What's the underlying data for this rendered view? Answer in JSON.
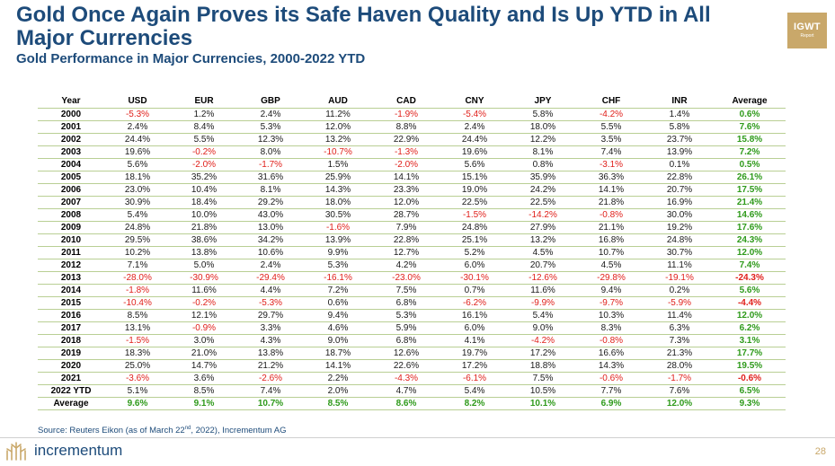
{
  "header": {
    "title": "Gold Once Again Proves its Safe Haven Quality and Is Up YTD in All Major Currencies",
    "subtitle": "Gold Performance in Major Currencies, 2000-2022 YTD",
    "badge_main": "IGWT",
    "badge_sub": "Report"
  },
  "table": {
    "columns": [
      "Year",
      "USD",
      "EUR",
      "GBP",
      "AUD",
      "CAD",
      "CNY",
      "JPY",
      "CHF",
      "INR",
      "Average"
    ],
    "rows": [
      [
        "2000",
        "-5.3%",
        "1.2%",
        "2.4%",
        "11.2%",
        "-1.9%",
        "-5.4%",
        "5.8%",
        "-4.2%",
        "1.4%",
        "0.6%"
      ],
      [
        "2001",
        "2.4%",
        "8.4%",
        "5.3%",
        "12.0%",
        "8.8%",
        "2.4%",
        "18.0%",
        "5.5%",
        "5.8%",
        "7.6%"
      ],
      [
        "2002",
        "24.4%",
        "5.5%",
        "12.3%",
        "13.2%",
        "22.9%",
        "24.4%",
        "12.2%",
        "3.5%",
        "23.7%",
        "15.8%"
      ],
      [
        "2003",
        "19.6%",
        "-0.2%",
        "8.0%",
        "-10.7%",
        "-1.3%",
        "19.6%",
        "8.1%",
        "7.4%",
        "13.9%",
        "7.2%"
      ],
      [
        "2004",
        "5.6%",
        "-2.0%",
        "-1.7%",
        "1.5%",
        "-2.0%",
        "5.6%",
        "0.8%",
        "-3.1%",
        "0.1%",
        "0.5%"
      ],
      [
        "2005",
        "18.1%",
        "35.2%",
        "31.6%",
        "25.9%",
        "14.1%",
        "15.1%",
        "35.9%",
        "36.3%",
        "22.8%",
        "26.1%"
      ],
      [
        "2006",
        "23.0%",
        "10.4%",
        "8.1%",
        "14.3%",
        "23.3%",
        "19.0%",
        "24.2%",
        "14.1%",
        "20.7%",
        "17.5%"
      ],
      [
        "2007",
        "30.9%",
        "18.4%",
        "29.2%",
        "18.0%",
        "12.0%",
        "22.5%",
        "22.5%",
        "21.8%",
        "16.9%",
        "21.4%"
      ],
      [
        "2008",
        "5.4%",
        "10.0%",
        "43.0%",
        "30.5%",
        "28.7%",
        "-1.5%",
        "-14.2%",
        "-0.8%",
        "30.0%",
        "14.6%"
      ],
      [
        "2009",
        "24.8%",
        "21.8%",
        "13.0%",
        "-1.6%",
        "7.9%",
        "24.8%",
        "27.9%",
        "21.1%",
        "19.2%",
        "17.6%"
      ],
      [
        "2010",
        "29.5%",
        "38.6%",
        "34.2%",
        "13.9%",
        "22.8%",
        "25.1%",
        "13.2%",
        "16.8%",
        "24.8%",
        "24.3%"
      ],
      [
        "2011",
        "10.2%",
        "13.8%",
        "10.6%",
        "9.9%",
        "12.7%",
        "5.2%",
        "4.5%",
        "10.7%",
        "30.7%",
        "12.0%"
      ],
      [
        "2012",
        "7.1%",
        "5.0%",
        "2.4%",
        "5.3%",
        "4.2%",
        "6.0%",
        "20.7%",
        "4.5%",
        "11.1%",
        "7.4%"
      ],
      [
        "2013",
        "-28.0%",
        "-30.9%",
        "-29.4%",
        "-16.1%",
        "-23.0%",
        "-30.1%",
        "-12.6%",
        "-29.8%",
        "-19.1%",
        "-24.3%"
      ],
      [
        "2014",
        "-1.8%",
        "11.6%",
        "4.4%",
        "7.2%",
        "7.5%",
        "0.7%",
        "11.6%",
        "9.4%",
        "0.2%",
        "5.6%"
      ],
      [
        "2015",
        "-10.4%",
        "-0.2%",
        "-5.3%",
        "0.6%",
        "6.8%",
        "-6.2%",
        "-9.9%",
        "-9.7%",
        "-5.9%",
        "-4.4%"
      ],
      [
        "2016",
        "8.5%",
        "12.1%",
        "29.7%",
        "9.4%",
        "5.3%",
        "16.1%",
        "5.4%",
        "10.3%",
        "11.4%",
        "12.0%"
      ],
      [
        "2017",
        "13.1%",
        "-0.9%",
        "3.3%",
        "4.6%",
        "5.9%",
        "6.0%",
        "9.0%",
        "8.3%",
        "6.3%",
        "6.2%"
      ],
      [
        "2018",
        "-1.5%",
        "3.0%",
        "4.3%",
        "9.0%",
        "6.8%",
        "4.1%",
        "-4.2%",
        "-0.8%",
        "7.3%",
        "3.1%"
      ],
      [
        "2019",
        "18.3%",
        "21.0%",
        "13.8%",
        "18.7%",
        "12.6%",
        "19.7%",
        "17.2%",
        "16.6%",
        "21.3%",
        "17.7%"
      ],
      [
        "2020",
        "25.0%",
        "14.7%",
        "21.2%",
        "14.1%",
        "22.6%",
        "17.2%",
        "18.8%",
        "14.3%",
        "28.0%",
        "19.5%"
      ],
      [
        "2021",
        "-3.6%",
        "3.6%",
        "-2.6%",
        "2.2%",
        "-4.3%",
        "-6.1%",
        "7.5%",
        "-0.6%",
        "-1.7%",
        "-0.6%"
      ],
      [
        "2022 YTD",
        "5.1%",
        "8.5%",
        "7.4%",
        "2.0%",
        "4.7%",
        "5.4%",
        "10.5%",
        "7.7%",
        "7.6%",
        "6.5%"
      ]
    ],
    "average_row": [
      "Average",
      "9.6%",
      "9.1%",
      "10.7%",
      "8.5%",
      "8.6%",
      "8.2%",
      "10.1%",
      "6.9%",
      "12.0%",
      "9.3%"
    ]
  },
  "footer": {
    "source_prefix": "Source: Reuters Eikon (as of March 22",
    "source_sup": "nd",
    "source_suffix": ", 2022), Incrementum AG",
    "brand": "incrementum",
    "page_number": "28"
  },
  "colors": {
    "title": "#1d4b7a",
    "negative": "#e0201b",
    "positive_average": "#2e9a1a",
    "row_divider": "#b9cf94",
    "gold_accent": "#c9a86a"
  }
}
